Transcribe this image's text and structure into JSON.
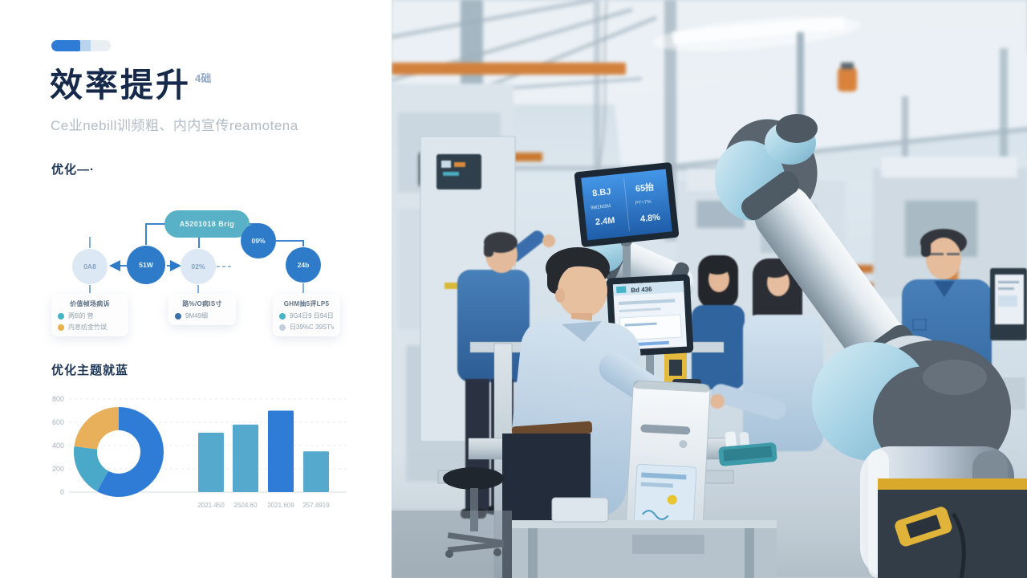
{
  "slide": {
    "accent_colors": {
      "primary": "#2e7cd6",
      "secondary": "#b8d4ee",
      "track": "#e9eef3"
    },
    "title": "效率提升",
    "title_note": "4础",
    "subtitle": "Ce业nebill训频粗、内内宣传reamotena",
    "sections": [
      {
        "heading": "优化—·"
      },
      {
        "heading": "优化主题就蓝"
      }
    ]
  },
  "flowchart": {
    "root": {
      "label": "A5201018 Brig",
      "color": "#58b1c6"
    },
    "colors": {
      "dark": "#2e7bc9",
      "light": "#dce8f3",
      "line": "#3c84ce"
    },
    "nodes": [
      {
        "label": "0A8",
        "style": "light"
      },
      {
        "label": "51W",
        "style": "dark"
      },
      {
        "label": "02%",
        "style": "light"
      },
      {
        "label": "09%",
        "style": "dark"
      },
      {
        "label": "24b",
        "style": "dark"
      }
    ],
    "cards": [
      {
        "title": "价值帧场病诉",
        "items": [
          {
            "color": "#45b4c6",
            "label": "两B的 营"
          },
          {
            "color": "#e8b04a",
            "label": "内息纺金竹误"
          }
        ]
      },
      {
        "title": "路%/O病IS寸",
        "items": [
          {
            "color": "#3a70a8",
            "label": "9M49细"
          }
        ]
      },
      {
        "title": "GHM抽5评LP5",
        "items": [
          {
            "color": "#45b4c6",
            "label": "9G4日9 日94日5"
          },
          {
            "color": "#c3ced8",
            "label": "日39%C 39STV"
          }
        ]
      }
    ]
  },
  "charts": {
    "chart_data": [
      {
        "type": "pie",
        "donut": true,
        "slices": [
          {
            "value": 58,
            "color": "#2e7cd6"
          },
          {
            "value": 19,
            "color": "#4aa8c9"
          },
          {
            "value": 23,
            "color": "#e8b05a"
          }
        ],
        "start_angle_deg": -90,
        "clockwise": true,
        "legend": "none"
      },
      {
        "type": "bar",
        "categories": [
          "2021.450",
          "2504.60",
          "2021.609",
          "257.4919"
        ],
        "values": [
          510,
          580,
          700,
          350
        ],
        "colors": [
          "#55a9cc",
          "#55a9cc",
          "#2e7cd6",
          "#55a9cc"
        ],
        "ylim": [
          0,
          800
        ],
        "yticks": [
          800,
          600,
          400,
          200,
          0
        ],
        "grid": "dashed-horizontal"
      }
    ]
  },
  "photo": {
    "description": "Smart factory floor: large collaborative robot arm with light-blue joint caps, five workers in blue shirts at assembly workstations, overhead orange beams",
    "screens": {
      "dashboard_monitor": {
        "left_column": [
          "8.BJ",
          "9M2M3M",
          "2.4M"
        ],
        "right_column": [
          "65抬",
          "PT+7%",
          "4.8%"
        ]
      },
      "workstation_monitor": {
        "header": "Bd 436"
      }
    },
    "palette": {
      "wall": "#e4ebf1",
      "beam_orange": "#cc7a38",
      "worker_shirt": "#3a6dab",
      "light_shirt": "#c3d6e8",
      "robot_metal": "#c9d4dc",
      "robot_cap": "#9fcfe2",
      "safety_yellow": "#e0b33a",
      "screen_blue": "#2e7cd6"
    }
  }
}
